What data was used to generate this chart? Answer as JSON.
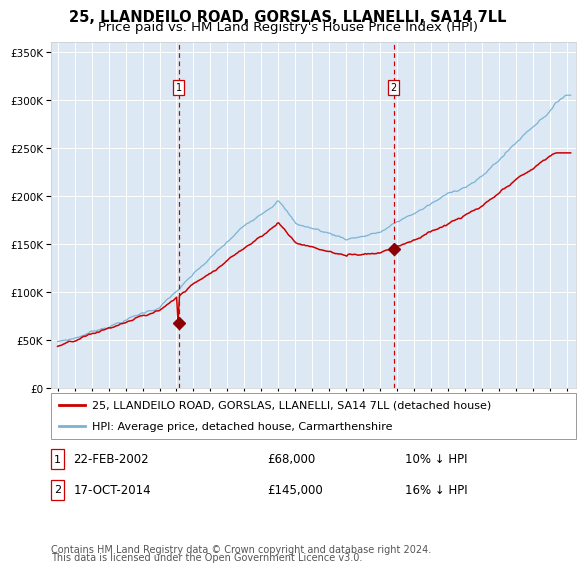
{
  "title": "25, LLANDEILO ROAD, GORSLAS, LLANELLI, SA14 7LL",
  "subtitle": "Price paid vs. HM Land Registry's House Price Index (HPI)",
  "legend_line1": "25, LLANDEILO ROAD, GORSLAS, LLANELLI, SA14 7LL (detached house)",
  "legend_line2": "HPI: Average price, detached house, Carmarthenshire",
  "footnote_line1": "Contains HM Land Registry data © Crown copyright and database right 2024.",
  "footnote_line2": "This data is licensed under the Open Government Licence v3.0.",
  "transaction1": {
    "date": "22-FEB-2002",
    "price": "£68,000",
    "hpi_diff": "10% ↓ HPI",
    "label": "1",
    "x_year": 2002.13,
    "y_val": 68000
  },
  "transaction2": {
    "date": "17-OCT-2014",
    "price": "£145,000",
    "hpi_diff": "16% ↓ HPI",
    "label": "2",
    "x_year": 2014.79,
    "y_val": 145000
  },
  "ylim": [
    0,
    360000
  ],
  "xlim_start": 1994.6,
  "xlim_end": 2025.5,
  "fig_bg": "#ffffff",
  "plot_bg_color": "#dce9f5",
  "grid_color": "#ffffff",
  "hpi_line_color": "#7ab3d4",
  "price_line_color": "#cc0000",
  "dashed_line_color": "#cc0000",
  "marker_color": "#8b0000",
  "title_fontsize": 10.5,
  "subtitle_fontsize": 9.5,
  "tick_fontsize": 7.5,
  "legend_fontsize": 8,
  "table_fontsize": 8.5,
  "footnote_fontsize": 7
}
